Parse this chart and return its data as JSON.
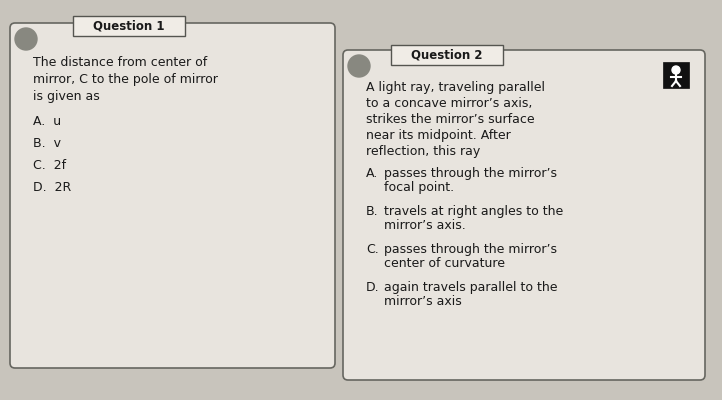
{
  "bg_color": "#c8c4bc",
  "card_facecolor": "#e8e4de",
  "card_edge": "#666660",
  "label_bg": "#f0ece6",
  "label_edge": "#555550",
  "text_color": "#1a1a1a",
  "icon_bg": "#888880",
  "icon2_bg": "#222222",
  "q1_label": "Question 1",
  "q1_lines": [
    "The distance from center of",
    "mirror, C to the pole of mirror",
    "is given as"
  ],
  "q1_options": [
    [
      "A.",
      "u"
    ],
    [
      "B.",
      "v"
    ],
    [
      "C.",
      "2f"
    ],
    [
      "D.",
      "2R"
    ]
  ],
  "q2_label": "Question 2",
  "q2_lines": [
    "A light ray, traveling parallel",
    "to a concave mirror’s axis,",
    "strikes the mirror’s surface",
    "near its midpoint. After",
    "reflection, this ray"
  ],
  "q2_options": [
    [
      "A.",
      "passes through the mirror’s",
      "focal point."
    ],
    [
      "B.",
      "travels at right angles to the",
      "mirror’s axis."
    ],
    [
      "C.",
      "passes through the mirror’s",
      "center of curvature"
    ],
    [
      "D.",
      "again travels parallel to the",
      "mirror’s axis"
    ]
  ],
  "fs_body": 9.0,
  "fs_label": 8.5,
  "fs_option_letter": 9.0
}
